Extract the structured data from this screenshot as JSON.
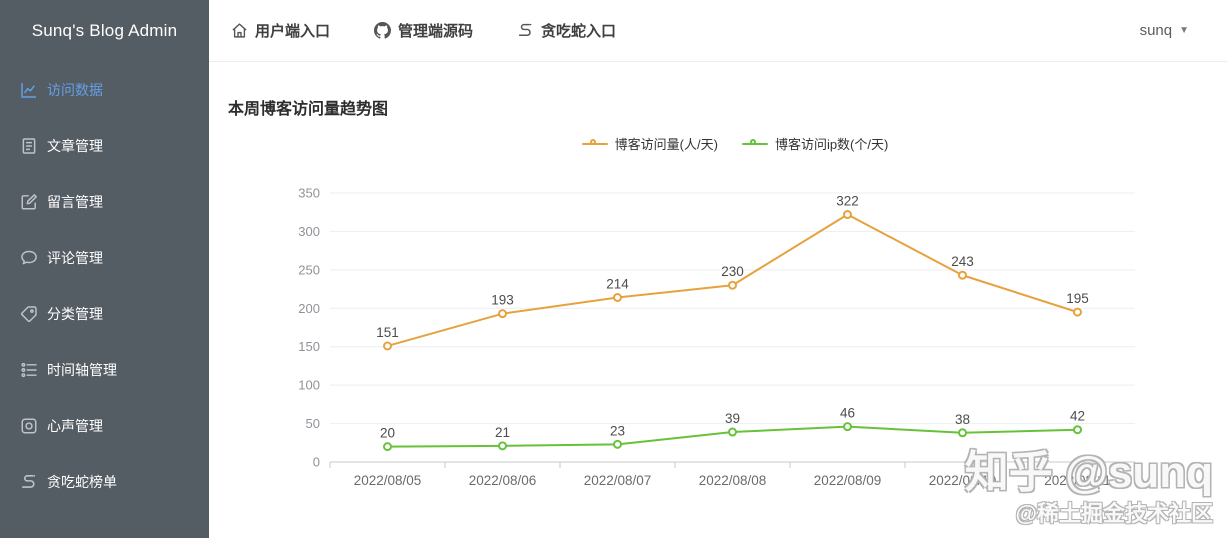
{
  "sidebar": {
    "title": "Sunq's Blog Admin",
    "colors": {
      "background": "#545c64",
      "text": "#ffffff",
      "active_text": "#64a0e6"
    },
    "items": [
      {
        "name": "visit-data",
        "label": "访问数据",
        "icon": "line-chart-icon",
        "active": true
      },
      {
        "name": "article-manage",
        "label": "文章管理",
        "icon": "document-icon",
        "active": false
      },
      {
        "name": "message-manage",
        "label": "留言管理",
        "icon": "edit-icon",
        "active": false
      },
      {
        "name": "comment-manage",
        "label": "评论管理",
        "icon": "comment-icon",
        "active": false
      },
      {
        "name": "category-manage",
        "label": "分类管理",
        "icon": "tag-icon",
        "active": false
      },
      {
        "name": "timeline-manage",
        "label": "时间轴管理",
        "icon": "timeline-icon",
        "active": false
      },
      {
        "name": "voice-manage",
        "label": "心声管理",
        "icon": "voice-icon",
        "active": false
      },
      {
        "name": "snake-rank",
        "label": "贪吃蛇榜单",
        "icon": "snake-icon",
        "active": false
      }
    ]
  },
  "topbar": {
    "links": [
      {
        "name": "user-portal",
        "label": "用户端入口",
        "icon": "home-icon"
      },
      {
        "name": "admin-source",
        "label": "管理端源码",
        "icon": "github-icon"
      },
      {
        "name": "snake-entry",
        "label": "贪吃蛇入口",
        "icon": "snake-icon"
      }
    ],
    "user": {
      "name": "sunq",
      "caret": "▼"
    }
  },
  "main": {
    "title": "本周博客访问量趋势图"
  },
  "chart_data": {
    "type": "line",
    "title": "本周博客访问量趋势图",
    "categories": [
      "2022/08/05",
      "2022/08/06",
      "2022/08/07",
      "2022/08/08",
      "2022/08/09",
      "2022/08/10",
      "2022/08/11"
    ],
    "series": [
      {
        "name": "博客访问量(人/天)",
        "color": "#e6a23c",
        "values": [
          151,
          193,
          214,
          230,
          322,
          243,
          195
        ]
      },
      {
        "name": "博客访问ip数(个/天)",
        "color": "#67c23a",
        "values": [
          20,
          21,
          23,
          39,
          46,
          38,
          42
        ]
      }
    ],
    "ylim": [
      0,
      350
    ],
    "y_ticks": [
      0,
      50,
      100,
      150,
      200,
      250,
      300,
      350
    ],
    "grid": true,
    "legend_position": "top",
    "point_labels": true,
    "xlabel": "",
    "ylabel": ""
  },
  "watermark": {
    "line1": "知乎 @sunq",
    "line2": "@稀土掘金技术社区"
  }
}
